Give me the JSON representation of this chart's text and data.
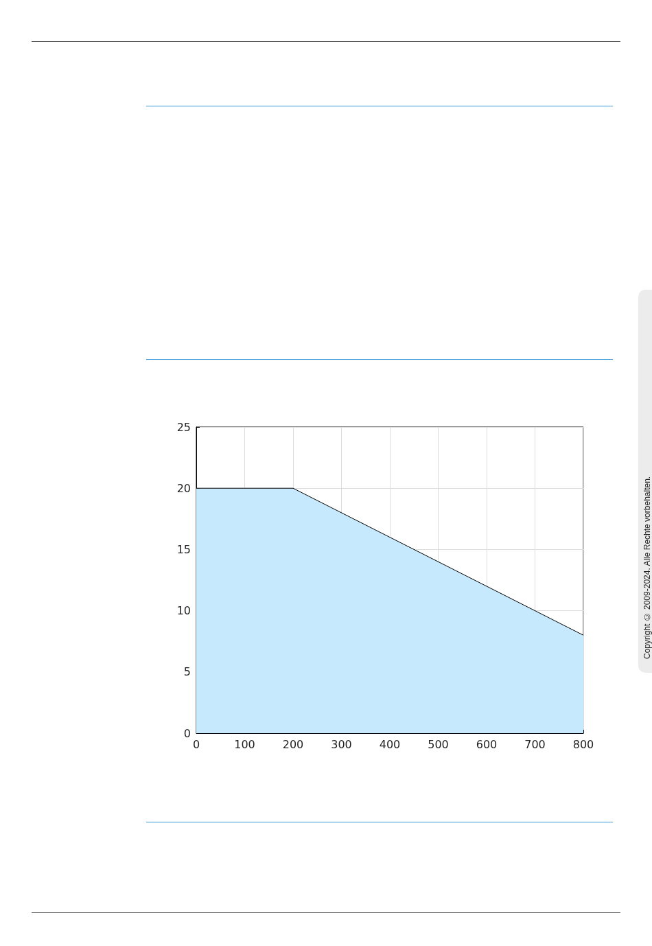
{
  "chart_data": {
    "type": "area",
    "x": [
      0,
      200,
      800
    ],
    "series": [
      {
        "color": "#c6e9fd",
        "values": [
          20,
          20,
          8
        ]
      }
    ],
    "xlim": [
      0,
      800
    ],
    "xticks": [
      0,
      100,
      200,
      300,
      400,
      500,
      600,
      700,
      800
    ],
    "ylim": [
      0,
      25
    ],
    "yticks": [
      0,
      5,
      10,
      15,
      20,
      25
    ],
    "grid": true,
    "marker": "none",
    "line_style": "solid",
    "annotations": [
      "Copyright © 2009-2024. Alle Rechte vorbehalten."
    ]
  }
}
